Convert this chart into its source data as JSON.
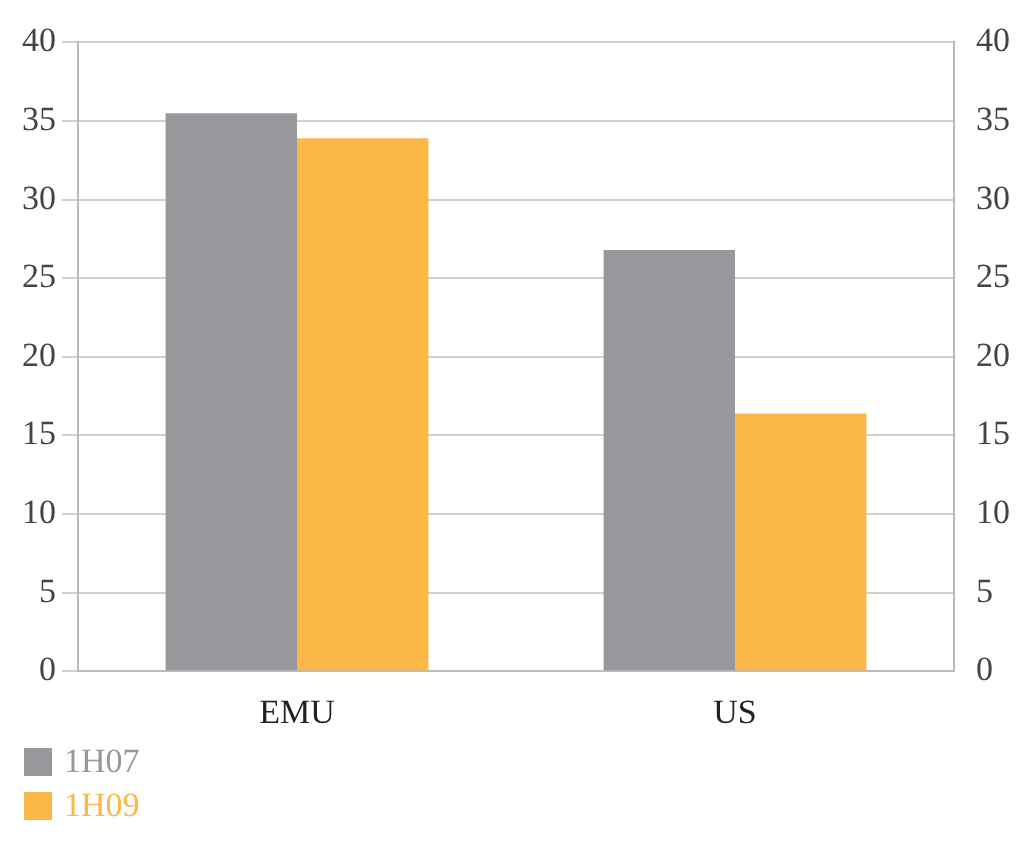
{
  "chart_data": {
    "type": "bar",
    "categories": [
      "EMU",
      "US"
    ],
    "series": [
      {
        "name": "1H07",
        "color": "#98989c",
        "values": [
          35.5,
          26.8
        ]
      },
      {
        "name": "1H09",
        "color": "#fbb846",
        "values": [
          33.9,
          16.4
        ]
      }
    ],
    "ylim": [
      0,
      40
    ],
    "yticks": [
      0,
      5,
      10,
      15,
      20,
      25,
      30,
      35,
      40
    ],
    "y2lim": [
      0,
      40
    ],
    "y2ticks": [
      0,
      5,
      10,
      15,
      20,
      25,
      30,
      35,
      40
    ],
    "grid": "y",
    "legend": "bottom left"
  }
}
